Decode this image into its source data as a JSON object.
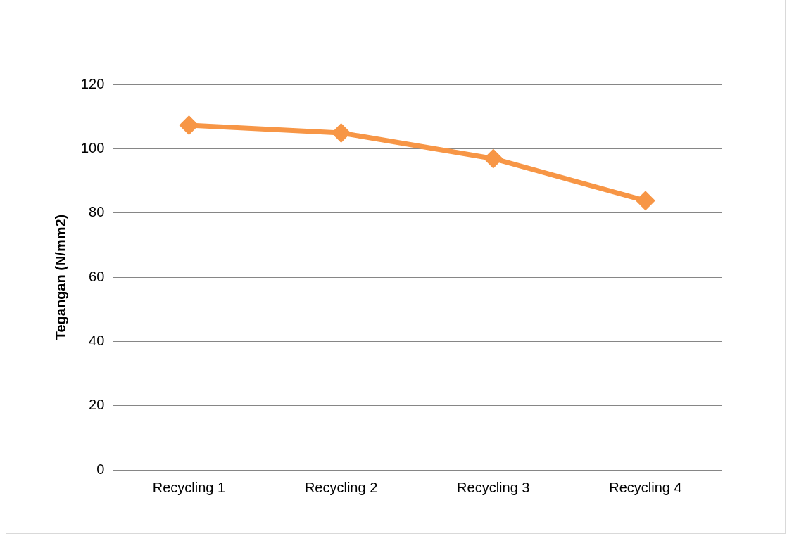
{
  "chart_data": {
    "type": "line",
    "ylabel": "Tegangan (N/mm2)",
    "categories": [
      "Recycling 1",
      "Recycling 2",
      "Recycling 3",
      "Recycling 4"
    ],
    "series": [
      {
        "color": "#f79646",
        "values": [
          107.3,
          104.9,
          96.9,
          83.8
        ]
      }
    ],
    "ylim": [
      0,
      120
    ],
    "yticks": [
      0,
      20,
      40,
      60,
      80,
      100,
      120
    ],
    "grid": "y",
    "legend": false,
    "marker": "diamond",
    "line_style": "solid"
  }
}
